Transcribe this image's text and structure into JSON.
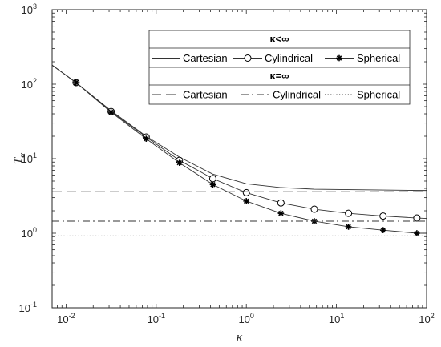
{
  "chart_data": {
    "type": "line",
    "title": "",
    "xlabel": "κ",
    "ylabel_main": "T",
    "ylabel_sub": "α",
    "xscale": "log",
    "yscale": "log",
    "xlim": [
      0.007,
      100
    ],
    "ylim": [
      0.1,
      1000
    ],
    "grid": false,
    "x_ticks": [
      {
        "value": 0.01,
        "base": "10",
        "exp": "-2"
      },
      {
        "value": 0.1,
        "base": "10",
        "exp": "-1"
      },
      {
        "value": 1,
        "base": "10",
        "exp": "0"
      },
      {
        "value": 10,
        "base": "10",
        "exp": "1"
      },
      {
        "value": 100,
        "base": "10",
        "exp": "2"
      }
    ],
    "y_ticks": [
      {
        "value": 0.1,
        "base": "10",
        "exp": "-1"
      },
      {
        "value": 1,
        "base": "10",
        "exp": "0"
      },
      {
        "value": 10,
        "base": "10",
        "exp": "1"
      },
      {
        "value": 100,
        "base": "10",
        "exp": "2"
      },
      {
        "value": 1000,
        "base": "10",
        "exp": "3"
      }
    ],
    "legend": {
      "placement": "top-right",
      "group1_title": "κ<∞",
      "group2_title": "κ=∞",
      "group1_labels": [
        "Cartesian",
        "Cylindrical",
        "Spherical"
      ],
      "group2_labels": [
        "Cartesian",
        "Cylindrical",
        "Spherical"
      ]
    },
    "series": [
      {
        "name": "Cartesian",
        "group": "finite",
        "style": "solid",
        "marker": "none",
        "x": [
          0.007,
          0.0129,
          0.0316,
          0.0774,
          0.181,
          0.425,
          1.0,
          2.42,
          5.68,
          13.6,
          32.9,
          78.0,
          100
        ],
        "y": [
          180,
          105,
          44,
          20,
          10.5,
          6.2,
          4.6,
          4.1,
          3.9,
          3.85,
          3.8,
          3.75,
          3.75
        ]
      },
      {
        "name": "Cylindrical",
        "group": "finite",
        "style": "solid",
        "marker": "circle",
        "x": [
          0.007,
          0.0129,
          0.0316,
          0.0774,
          0.181,
          0.425,
          1.0,
          2.42,
          5.68,
          13.6,
          32.9,
          78.0,
          100
        ],
        "y": [
          180,
          105,
          43,
          19.5,
          9.5,
          5.4,
          3.5,
          2.55,
          2.1,
          1.85,
          1.7,
          1.6,
          1.58
        ],
        "marker_x": [
          0.0129,
          0.0316,
          0.0774,
          0.181,
          0.425,
          1.0,
          2.42,
          5.68,
          13.6,
          32.9,
          78.0
        ],
        "marker_y": [
          105,
          43,
          19.5,
          9.5,
          5.4,
          3.5,
          2.55,
          2.1,
          1.85,
          1.7,
          1.6
        ]
      },
      {
        "name": "Spherical",
        "group": "finite",
        "style": "solid",
        "marker": "star",
        "x": [
          0.007,
          0.0129,
          0.0316,
          0.0774,
          0.181,
          0.425,
          1.0,
          2.42,
          5.68,
          13.6,
          32.9,
          78.0,
          100
        ],
        "y": [
          180,
          105,
          42,
          18.5,
          8.8,
          4.5,
          2.7,
          1.85,
          1.45,
          1.22,
          1.1,
          1.0,
          1.0
        ],
        "marker_x": [
          0.0129,
          0.0316,
          0.0774,
          0.181,
          0.425,
          1.0,
          2.42,
          5.68,
          13.6,
          32.9,
          78.0
        ],
        "marker_y": [
          105,
          42,
          18.5,
          8.8,
          4.5,
          2.7,
          1.85,
          1.45,
          1.22,
          1.1,
          1.0
        ]
      },
      {
        "name": "Cartesian",
        "group": "infinite",
        "style": "dashed",
        "marker": "none",
        "x": [
          0.007,
          100
        ],
        "y": [
          3.6,
          3.6
        ]
      },
      {
        "name": "Cylindrical",
        "group": "infinite",
        "style": "dashdot",
        "marker": "none",
        "x": [
          0.007,
          100
        ],
        "y": [
          1.45,
          1.45
        ]
      },
      {
        "name": "Spherical",
        "group": "infinite",
        "style": "dotted",
        "marker": "none",
        "x": [
          0.007,
          100
        ],
        "y": [
          0.92,
          0.92
        ]
      }
    ]
  }
}
